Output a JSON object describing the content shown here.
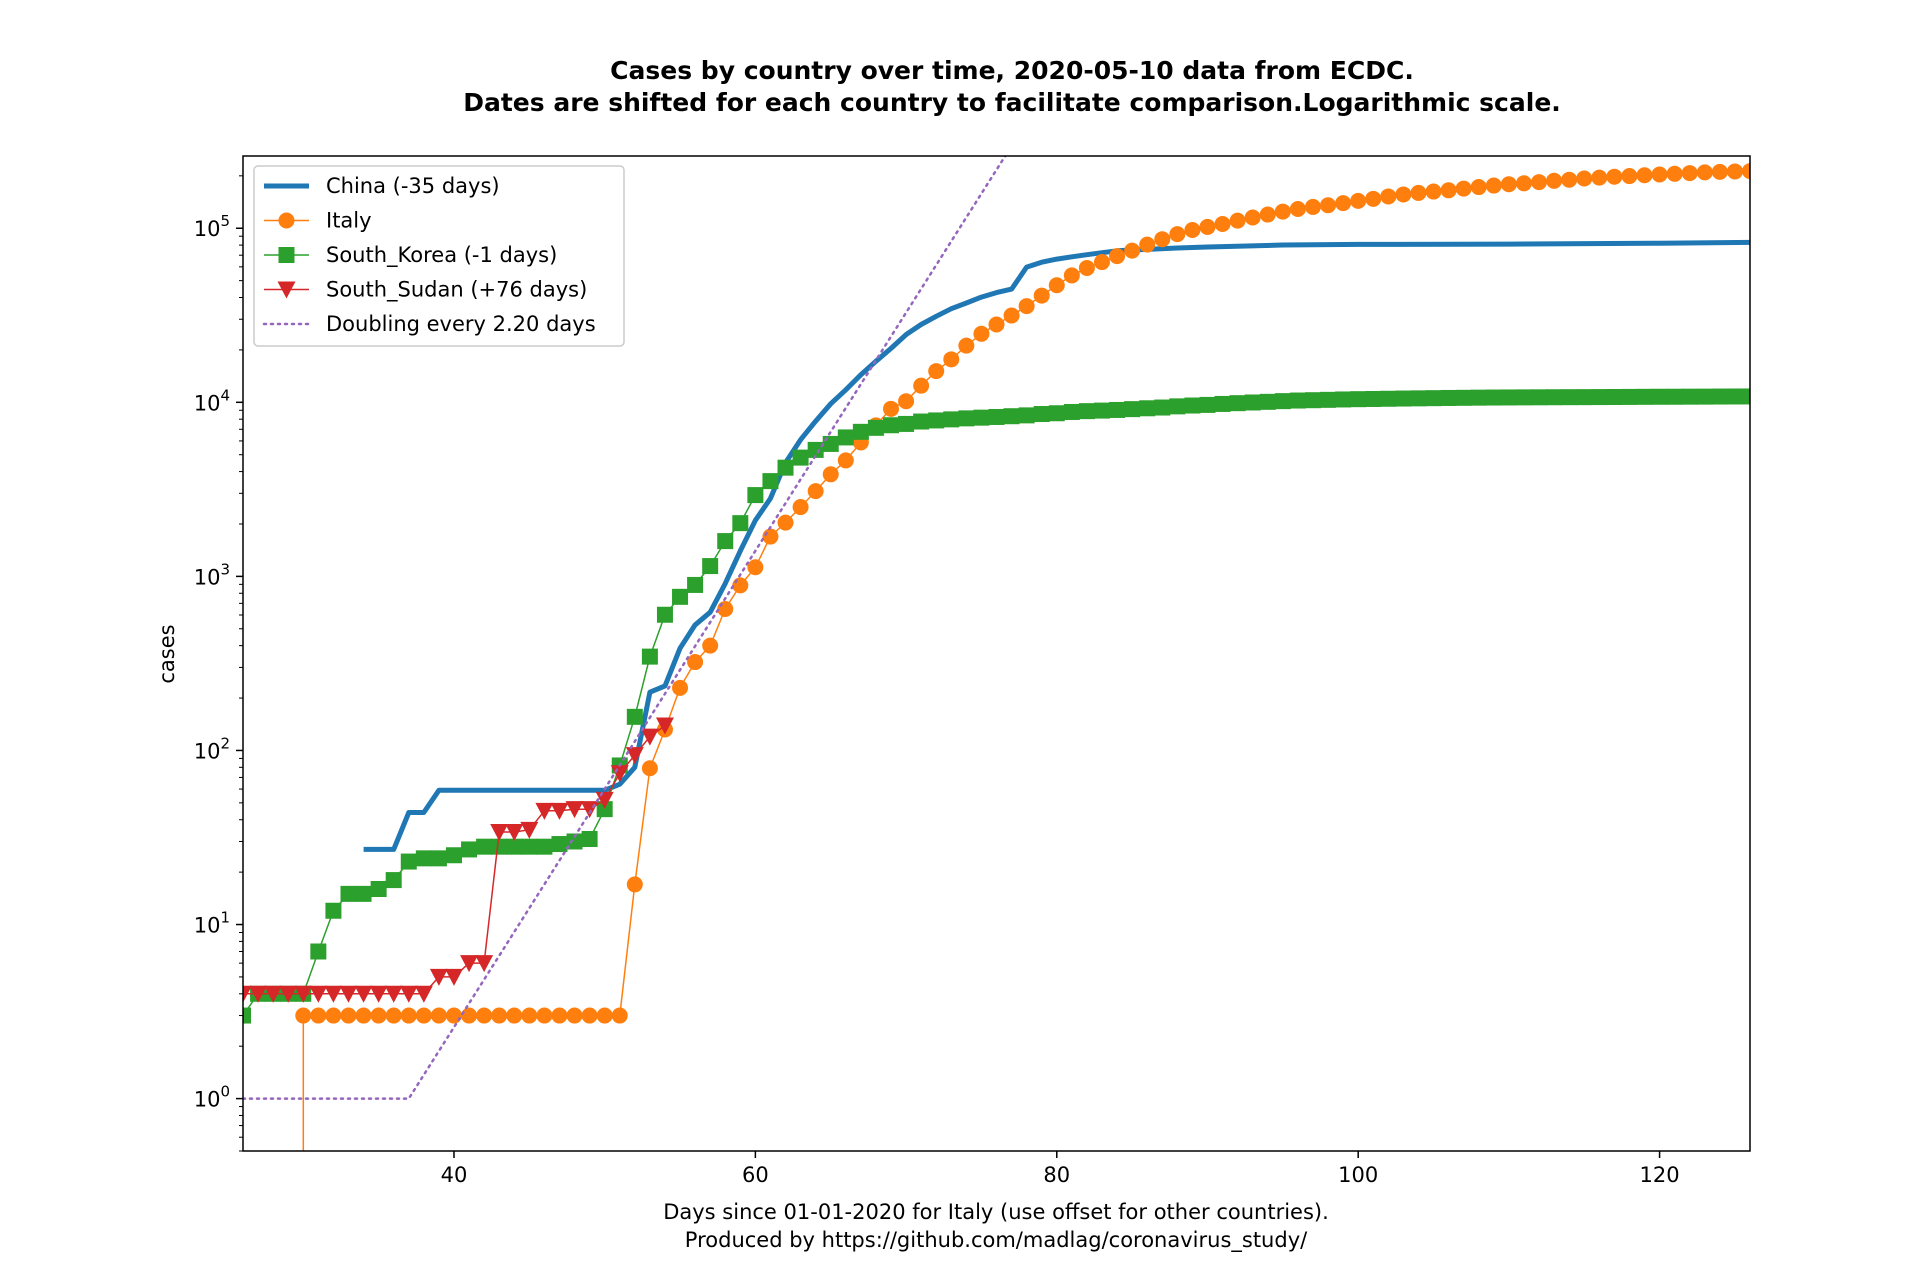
{
  "chart_data": {
    "type": "line",
    "title": "Cases by country over time, 2020-05-10 data from ECDC.",
    "subtitle": "Dates are shifted for each country to facilitate comparison.Logarithmic scale.",
    "xlabel": "Days since 01-01-2020 for Italy (use offset for other countries).",
    "xlabel2": "Produced by https://github.com/madlag/coronavirus_study/",
    "ylabel": "cases",
    "xlim": [
      26,
      126
    ],
    "ylim": [
      0.5,
      260000
    ],
    "yscale": "log",
    "grid": false,
    "legend_position": "top-left",
    "x_ticks": [
      40,
      60,
      80,
      100,
      120
    ],
    "y_ticks": [
      {
        "value": 1,
        "base": "10",
        "exp": "0"
      },
      {
        "value": 10,
        "base": "10",
        "exp": "1"
      },
      {
        "value": 100,
        "base": "10",
        "exp": "2"
      },
      {
        "value": 1000,
        "base": "10",
        "exp": "3"
      },
      {
        "value": 10000,
        "base": "10",
        "exp": "4"
      },
      {
        "value": 100000,
        "base": "10",
        "exp": "5"
      }
    ],
    "series": [
      {
        "name": "China (-35 days)",
        "color": "#1f77b4",
        "marker": "none",
        "linewidth": 5,
        "points": [
          [
            34,
            27
          ],
          [
            36,
            27
          ],
          [
            37,
            44
          ],
          [
            38,
            44
          ],
          [
            39,
            59
          ],
          [
            50,
            59
          ],
          [
            51,
            64
          ],
          [
            52,
            80
          ],
          [
            53,
            216
          ],
          [
            54,
            235
          ],
          [
            55,
            386
          ],
          [
            56,
            526
          ],
          [
            57,
            623
          ],
          [
            58,
            909
          ],
          [
            59,
            1400
          ],
          [
            60,
            2100
          ],
          [
            61,
            2800
          ],
          [
            62,
            4500
          ],
          [
            63,
            6100
          ],
          [
            64,
            7800
          ],
          [
            65,
            9800
          ],
          [
            66,
            11800
          ],
          [
            67,
            14400
          ],
          [
            68,
            17200
          ],
          [
            69,
            20400
          ],
          [
            70,
            24500
          ],
          [
            71,
            28000
          ],
          [
            72,
            31200
          ],
          [
            73,
            34500
          ],
          [
            74,
            37200
          ],
          [
            75,
            40200
          ],
          [
            76,
            42700
          ],
          [
            77,
            44700
          ],
          [
            78,
            59800
          ],
          [
            79,
            63800
          ],
          [
            80,
            66500
          ],
          [
            81,
            68500
          ],
          [
            82,
            70500
          ],
          [
            83,
            72400
          ],
          [
            84,
            74200
          ],
          [
            85,
            75000
          ],
          [
            86,
            75600
          ],
          [
            88,
            77000
          ],
          [
            90,
            78000
          ],
          [
            95,
            80100
          ],
          [
            100,
            80800
          ],
          [
            110,
            81100
          ],
          [
            120,
            82000
          ],
          [
            126,
            82900
          ]
        ]
      },
      {
        "name": "Italy",
        "color": "#ff7f0e",
        "marker": "circle",
        "linewidth": 1.5,
        "points": [
          [
            30,
            0.3
          ],
          [
            30,
            3
          ],
          [
            31,
            3
          ],
          [
            32,
            3
          ],
          [
            33,
            3
          ],
          [
            34,
            3
          ],
          [
            35,
            3
          ],
          [
            36,
            3
          ],
          [
            37,
            3
          ],
          [
            38,
            3
          ],
          [
            39,
            3
          ],
          [
            40,
            3
          ],
          [
            41,
            3
          ],
          [
            42,
            3
          ],
          [
            43,
            3
          ],
          [
            44,
            3
          ],
          [
            45,
            3
          ],
          [
            46,
            3
          ],
          [
            47,
            3
          ],
          [
            48,
            3
          ],
          [
            49,
            3
          ],
          [
            50,
            3
          ],
          [
            51,
            3
          ],
          [
            52,
            17
          ],
          [
            53,
            79
          ],
          [
            54,
            132
          ],
          [
            55,
            229
          ],
          [
            56,
            322
          ],
          [
            57,
            400
          ],
          [
            58,
            650
          ],
          [
            59,
            888
          ],
          [
            60,
            1128
          ],
          [
            61,
            1694
          ],
          [
            62,
            2036
          ],
          [
            63,
            2502
          ],
          [
            64,
            3089
          ],
          [
            65,
            3858
          ],
          [
            66,
            4636
          ],
          [
            67,
            5883
          ],
          [
            68,
            7375
          ],
          [
            69,
            9172
          ],
          [
            70,
            10149
          ],
          [
            71,
            12462
          ],
          [
            72,
            15113
          ],
          [
            73,
            17660
          ],
          [
            74,
            21157
          ],
          [
            75,
            24747
          ],
          [
            76,
            27980
          ],
          [
            77,
            31506
          ],
          [
            78,
            35713
          ],
          [
            79,
            41035
          ],
          [
            80,
            47021
          ],
          [
            81,
            53578
          ],
          [
            82,
            59138
          ],
          [
            83,
            63927
          ],
          [
            84,
            69176
          ],
          [
            85,
            74386
          ],
          [
            86,
            80539
          ],
          [
            87,
            86498
          ],
          [
            88,
            92472
          ],
          [
            89,
            97689
          ],
          [
            90,
            101739
          ],
          [
            91,
            105792
          ],
          [
            92,
            110574
          ],
          [
            93,
            115242
          ],
          [
            94,
            119827
          ],
          [
            95,
            124632
          ],
          [
            96,
            128948
          ],
          [
            97,
            132547
          ],
          [
            98,
            135586
          ],
          [
            99,
            139422
          ],
          [
            100,
            143626
          ],
          [
            101,
            147577
          ],
          [
            102,
            152271
          ],
          [
            103,
            156363
          ],
          [
            104,
            159516
          ],
          [
            105,
            162488
          ],
          [
            106,
            165155
          ],
          [
            107,
            168941
          ],
          [
            108,
            172434
          ],
          [
            109,
            175925
          ],
          [
            110,
            178972
          ],
          [
            111,
            181228
          ],
          [
            112,
            183957
          ],
          [
            113,
            187327
          ],
          [
            114,
            189973
          ],
          [
            115,
            192994
          ],
          [
            116,
            195351
          ],
          [
            117,
            197675
          ],
          [
            118,
            199414
          ],
          [
            119,
            201505
          ],
          [
            120,
            203591
          ],
          [
            121,
            205463
          ],
          [
            122,
            207428
          ],
          [
            123,
            209328
          ],
          [
            124,
            210717
          ],
          [
            125,
            211938
          ],
          [
            126,
            213013
          ]
        ]
      },
      {
        "name": "South_Korea (-1 days)",
        "color": "#2ca02c",
        "marker": "square",
        "linewidth": 1.5,
        "points": [
          [
            26,
            3
          ],
          [
            27,
            4
          ],
          [
            28,
            4
          ],
          [
            29,
            4
          ],
          [
            30,
            4
          ],
          [
            31,
            7
          ],
          [
            32,
            12
          ],
          [
            33,
            15
          ],
          [
            34,
            15
          ],
          [
            35,
            16
          ],
          [
            36,
            18
          ],
          [
            37,
            23
          ],
          [
            38,
            24
          ],
          [
            39,
            24
          ],
          [
            40,
            25
          ],
          [
            41,
            27
          ],
          [
            42,
            28
          ],
          [
            43,
            28
          ],
          [
            44,
            28
          ],
          [
            45,
            28
          ],
          [
            46,
            28
          ],
          [
            47,
            29
          ],
          [
            48,
            30
          ],
          [
            49,
            31
          ],
          [
            50,
            46
          ],
          [
            51,
            82
          ],
          [
            52,
            156
          ],
          [
            53,
            346
          ],
          [
            54,
            602
          ],
          [
            55,
            763
          ],
          [
            56,
            893
          ],
          [
            57,
            1146
          ],
          [
            58,
            1595
          ],
          [
            59,
            2022
          ],
          [
            60,
            2931
          ],
          [
            61,
            3526
          ],
          [
            62,
            4212
          ],
          [
            63,
            4812
          ],
          [
            64,
            5328
          ],
          [
            65,
            5766
          ],
          [
            66,
            6284
          ],
          [
            67,
            6767
          ],
          [
            68,
            7134
          ],
          [
            69,
            7382
          ],
          [
            70,
            7513
          ],
          [
            71,
            7755
          ],
          [
            72,
            7869
          ],
          [
            73,
            7979
          ],
          [
            74,
            8086
          ],
          [
            75,
            8162
          ],
          [
            76,
            8236
          ],
          [
            77,
            8320
          ],
          [
            78,
            8413
          ],
          [
            79,
            8565
          ],
          [
            80,
            8652
          ],
          [
            81,
            8799
          ],
          [
            82,
            8897
          ],
          [
            83,
            8961
          ],
          [
            84,
            9037
          ],
          [
            85,
            9137
          ],
          [
            86,
            9241
          ],
          [
            87,
            9332
          ],
          [
            88,
            9478
          ],
          [
            89,
            9583
          ],
          [
            90,
            9661
          ],
          [
            91,
            9786
          ],
          [
            92,
            9887
          ],
          [
            93,
            9976
          ],
          [
            94,
            10062
          ],
          [
            95,
            10156
          ],
          [
            96,
            10237
          ],
          [
            97,
            10284
          ],
          [
            98,
            10331
          ],
          [
            99,
            10384
          ],
          [
            100,
            10423
          ],
          [
            101,
            10450
          ],
          [
            102,
            10480
          ],
          [
            103,
            10512
          ],
          [
            104,
            10537
          ],
          [
            105,
            10564
          ],
          [
            106,
            10591
          ],
          [
            107,
            10613
          ],
          [
            108,
            10635
          ],
          [
            109,
            10653
          ],
          [
            110,
            10661
          ],
          [
            111,
            10674
          ],
          [
            112,
            10683
          ],
          [
            113,
            10694
          ],
          [
            114,
            10702
          ],
          [
            115,
            10708
          ],
          [
            116,
            10718
          ],
          [
            117,
            10728
          ],
          [
            118,
            10738
          ],
          [
            119,
            10752
          ],
          [
            120,
            10761
          ],
          [
            121,
            10765
          ],
          [
            122,
            10774
          ],
          [
            123,
            10780
          ],
          [
            124,
            10793
          ],
          [
            125,
            10801
          ],
          [
            126,
            10804
          ]
        ]
      },
      {
        "name": "South_Sudan (+76 days)",
        "color": "#d62728",
        "marker": "triangle_down",
        "linewidth": 1.5,
        "points": [
          [
            26,
            4
          ],
          [
            27,
            4
          ],
          [
            28,
            4
          ],
          [
            29,
            4
          ],
          [
            30,
            4
          ],
          [
            31,
            4
          ],
          [
            32,
            4
          ],
          [
            33,
            4
          ],
          [
            34,
            4
          ],
          [
            35,
            4
          ],
          [
            36,
            4
          ],
          [
            37,
            4
          ],
          [
            38,
            4
          ],
          [
            39,
            5
          ],
          [
            40,
            5
          ],
          [
            41,
            6
          ],
          [
            42,
            6
          ],
          [
            43,
            34
          ],
          [
            44,
            34
          ],
          [
            45,
            35
          ],
          [
            46,
            45
          ],
          [
            47,
            45
          ],
          [
            48,
            46
          ],
          [
            49,
            46
          ],
          [
            50,
            52
          ],
          [
            51,
            74
          ],
          [
            52,
            94
          ],
          [
            53,
            120
          ],
          [
            54,
            139
          ]
        ]
      },
      {
        "name": "Doubling every 2.20 days",
        "color": "#9467bd",
        "marker": "none",
        "linewidth": 2.5,
        "dashed": true,
        "points": [
          [
            26,
            1
          ],
          [
            37,
            1
          ],
          [
            77,
            297000
          ]
        ]
      }
    ]
  }
}
